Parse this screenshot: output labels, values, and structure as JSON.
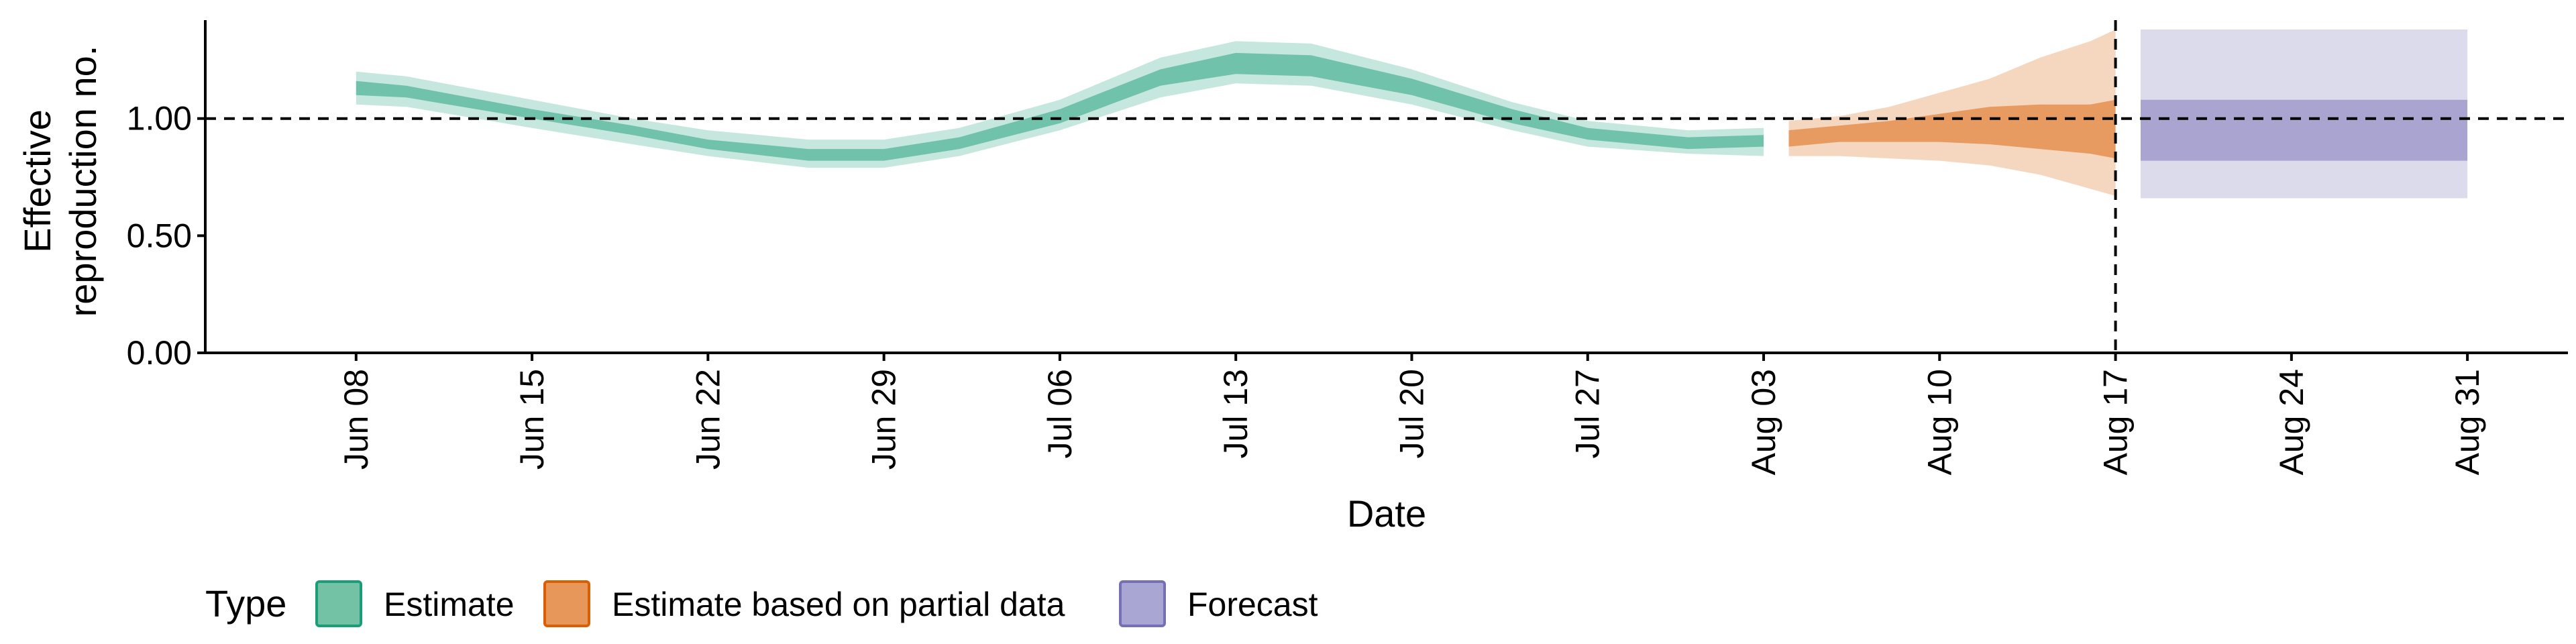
{
  "chart_data": {
    "type": "area",
    "xlabel": "Date",
    "ylabel_lines": [
      "Effective",
      "reproduction no."
    ],
    "ylim": [
      0,
      1.42
    ],
    "xlim": [
      "2021-06-02",
      "2021-09-04"
    ],
    "y_ticks": [
      {
        "value": 0.0,
        "label": "0.00"
      },
      {
        "value": 0.5,
        "label": "0.50"
      },
      {
        "value": 1.0,
        "label": "1.00"
      }
    ],
    "x_ticks": [
      {
        "date": "2021-06-08",
        "label": "Jun 08"
      },
      {
        "date": "2021-06-15",
        "label": "Jun 15"
      },
      {
        "date": "2021-06-22",
        "label": "Jun 22"
      },
      {
        "date": "2021-06-29",
        "label": "Jun 29"
      },
      {
        "date": "2021-07-06",
        "label": "Jul 06"
      },
      {
        "date": "2021-07-13",
        "label": "Jul 13"
      },
      {
        "date": "2021-07-20",
        "label": "Jul 20"
      },
      {
        "date": "2021-07-27",
        "label": "Jul 27"
      },
      {
        "date": "2021-08-03",
        "label": "Aug 03"
      },
      {
        "date": "2021-08-10",
        "label": "Aug 10"
      },
      {
        "date": "2021-08-17",
        "label": "Aug 17"
      },
      {
        "date": "2021-08-24",
        "label": "Aug 24"
      },
      {
        "date": "2021-08-31",
        "label": "Aug 31"
      }
    ],
    "reference_hline": 1.0,
    "reference_vline": "2021-08-17",
    "series": [
      {
        "name": "Estimate",
        "fill_color": "#1b9e77",
        "border_color": "#1b9e77",
        "legend_fill": "#74c2a5",
        "points": [
          {
            "date": "2021-06-08",
            "outer": [
              1.06,
              1.2
            ],
            "inner": [
              1.1,
              1.16
            ]
          },
          {
            "date": "2021-06-10",
            "outer": [
              1.05,
              1.18
            ],
            "inner": [
              1.09,
              1.14
            ]
          },
          {
            "date": "2021-06-15",
            "outer": [
              0.96,
              1.08
            ],
            "inner": [
              1.0,
              1.04
            ]
          },
          {
            "date": "2021-06-19",
            "outer": [
              0.89,
              1.0
            ],
            "inner": [
              0.93,
              0.97
            ]
          },
          {
            "date": "2021-06-22",
            "outer": [
              0.84,
              0.95
            ],
            "inner": [
              0.87,
              0.91
            ]
          },
          {
            "date": "2021-06-26",
            "outer": [
              0.79,
              0.91
            ],
            "inner": [
              0.82,
              0.87
            ]
          },
          {
            "date": "2021-06-29",
            "outer": [
              0.79,
              0.91
            ],
            "inner": [
              0.82,
              0.87
            ]
          },
          {
            "date": "2021-07-02",
            "outer": [
              0.84,
              0.96
            ],
            "inner": [
              0.87,
              0.92
            ]
          },
          {
            "date": "2021-07-06",
            "outer": [
              0.95,
              1.08
            ],
            "inner": [
              0.98,
              1.04
            ]
          },
          {
            "date": "2021-07-10",
            "outer": [
              1.09,
              1.26
            ],
            "inner": [
              1.14,
              1.21
            ]
          },
          {
            "date": "2021-07-13",
            "outer": [
              1.15,
              1.33
            ],
            "inner": [
              1.19,
              1.28
            ]
          },
          {
            "date": "2021-07-16",
            "outer": [
              1.14,
              1.32
            ],
            "inner": [
              1.18,
              1.27
            ]
          },
          {
            "date": "2021-07-20",
            "outer": [
              1.06,
              1.21
            ],
            "inner": [
              1.1,
              1.17
            ]
          },
          {
            "date": "2021-07-24",
            "outer": [
              0.95,
              1.07
            ],
            "inner": [
              0.98,
              1.04
            ]
          },
          {
            "date": "2021-07-27",
            "outer": [
              0.88,
              0.99
            ],
            "inner": [
              0.91,
              0.96
            ]
          },
          {
            "date": "2021-07-31",
            "outer": [
              0.85,
              0.95
            ],
            "inner": [
              0.87,
              0.92
            ]
          },
          {
            "date": "2021-08-03",
            "outer": [
              0.84,
              0.96
            ],
            "inner": [
              0.88,
              0.93
            ]
          }
        ]
      },
      {
        "name": "Estimate based on partial data",
        "fill_color": "#d95f02",
        "border_color": "#d95f02",
        "legend_fill": "#e8975a",
        "points": [
          {
            "date": "2021-08-04",
            "outer": [
              0.84,
              0.99
            ],
            "inner": [
              0.88,
              0.95
            ]
          },
          {
            "date": "2021-08-06",
            "outer": [
              0.84,
              1.01
            ],
            "inner": [
              0.9,
              0.97
            ]
          },
          {
            "date": "2021-08-08",
            "outer": [
              0.83,
              1.05
            ],
            "inner": [
              0.9,
              0.99
            ]
          },
          {
            "date": "2021-08-10",
            "outer": [
              0.82,
              1.11
            ],
            "inner": [
              0.9,
              1.02
            ]
          },
          {
            "date": "2021-08-12",
            "outer": [
              0.8,
              1.17
            ],
            "inner": [
              0.89,
              1.05
            ]
          },
          {
            "date": "2021-08-14",
            "outer": [
              0.76,
              1.26
            ],
            "inner": [
              0.87,
              1.06
            ]
          },
          {
            "date": "2021-08-16",
            "outer": [
              0.7,
              1.33
            ],
            "inner": [
              0.85,
              1.06
            ]
          },
          {
            "date": "2021-08-17",
            "outer": [
              0.67,
              1.38
            ],
            "inner": [
              0.83,
              1.08
            ]
          }
        ]
      },
      {
        "name": "Forecast",
        "fill_color": "#7570b3",
        "border_color": "#7570b3",
        "legend_fill": "#aaa6d4",
        "points": [
          {
            "date": "2021-08-18",
            "outer": [
              0.66,
              1.38
            ],
            "inner": [
              0.82,
              1.08
            ]
          },
          {
            "date": "2021-08-31",
            "outer": [
              0.66,
              1.38
            ],
            "inner": [
              0.82,
              1.08
            ]
          }
        ]
      }
    ],
    "legend": {
      "title": "Type",
      "placement": "bottom-left",
      "items": [
        "Estimate",
        "Estimate based on partial data",
        "Forecast"
      ]
    },
    "grid": false
  }
}
